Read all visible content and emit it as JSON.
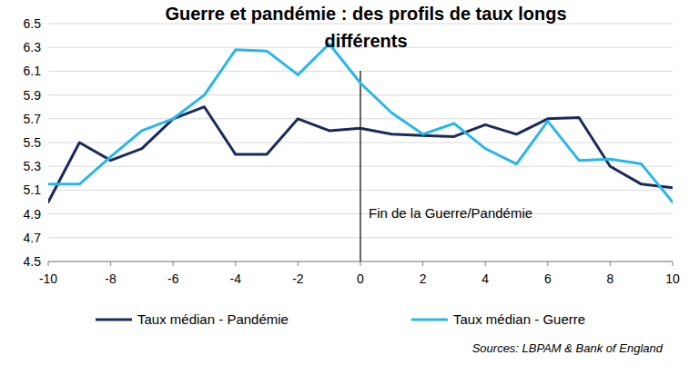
{
  "chart_data": {
    "type": "line",
    "title": "Guerre et pandémie : des profils de taux longs différents",
    "x": [
      -10,
      -9,
      -8,
      -7,
      -6,
      -5,
      -4,
      -3,
      -2,
      -1,
      0,
      1,
      2,
      3,
      4,
      5,
      6,
      7,
      8,
      9,
      10
    ],
    "series": [
      {
        "name": "Taux médian - Pandémie",
        "color": "#1b2a5c",
        "values": [
          5.0,
          5.5,
          5.35,
          5.45,
          5.7,
          5.8,
          5.4,
          5.4,
          5.7,
          5.6,
          5.62,
          5.57,
          5.56,
          5.55,
          5.65,
          5.57,
          5.7,
          5.71,
          5.3,
          5.15,
          5.12
        ]
      },
      {
        "name": "Taux médian - Guerre",
        "color": "#29b6e9",
        "values": [
          5.15,
          5.15,
          5.38,
          5.6,
          5.7,
          5.9,
          6.28,
          6.27,
          6.07,
          6.33,
          6.0,
          5.75,
          5.57,
          5.66,
          5.45,
          5.32,
          5.68,
          5.35,
          5.36,
          5.32,
          5.0
        ]
      }
    ],
    "xlim": [
      -10,
      10
    ],
    "xticks": [
      -10,
      -8,
      -6,
      -4,
      -2,
      0,
      2,
      4,
      6,
      8,
      10
    ],
    "ylim": [
      4.5,
      6.5
    ],
    "yticks": [
      4.5,
      4.7,
      4.9,
      5.1,
      5.3,
      5.5,
      5.7,
      5.9,
      6.1,
      6.3,
      6.5
    ],
    "grid": true,
    "legend": "bottom",
    "annotations": [
      {
        "text": "Fin de la Guerre/Pandémie",
        "x": 0
      }
    ],
    "source": "Sources: LBPAM & Bank of England"
  }
}
